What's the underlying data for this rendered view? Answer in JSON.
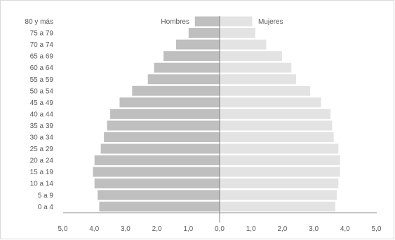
{
  "chart_data": {
    "type": "bar",
    "orientation": "horizontal",
    "categories": [
      "80 y más",
      "75 a 79",
      "70 a 74",
      "65 a 69",
      "60 a 64",
      "55 a 59",
      "50 a 54",
      "45 a 49",
      "40 a 44",
      "35 a 39",
      "30 a 34",
      "25 a 29",
      "20 a 24",
      "15 a 19",
      "10 a 14",
      "5 a 9",
      "0 a 4"
    ],
    "series": [
      {
        "name": "Hombres",
        "color": "#bfbfbf",
        "values": [
          0.8,
          1.0,
          1.4,
          1.8,
          2.1,
          2.3,
          2.8,
          3.2,
          3.5,
          3.6,
          3.7,
          3.8,
          4.0,
          4.05,
          4.0,
          3.9,
          3.85
        ]
      },
      {
        "name": "Mujeres",
        "color": "#e3e3e3",
        "values": [
          1.05,
          1.15,
          1.5,
          2.0,
          2.3,
          2.45,
          2.9,
          3.25,
          3.55,
          3.6,
          3.65,
          3.8,
          3.85,
          3.85,
          3.8,
          3.75,
          3.7
        ]
      }
    ],
    "x_ticks": [
      "5,0",
      "4,0",
      "3,0",
      "2,0",
      "1,0",
      "0,0",
      "1,0",
      "2,0",
      "3,0",
      "4,0",
      "5,0"
    ],
    "xlim": [
      -5,
      5
    ],
    "legend": "inline-top"
  }
}
